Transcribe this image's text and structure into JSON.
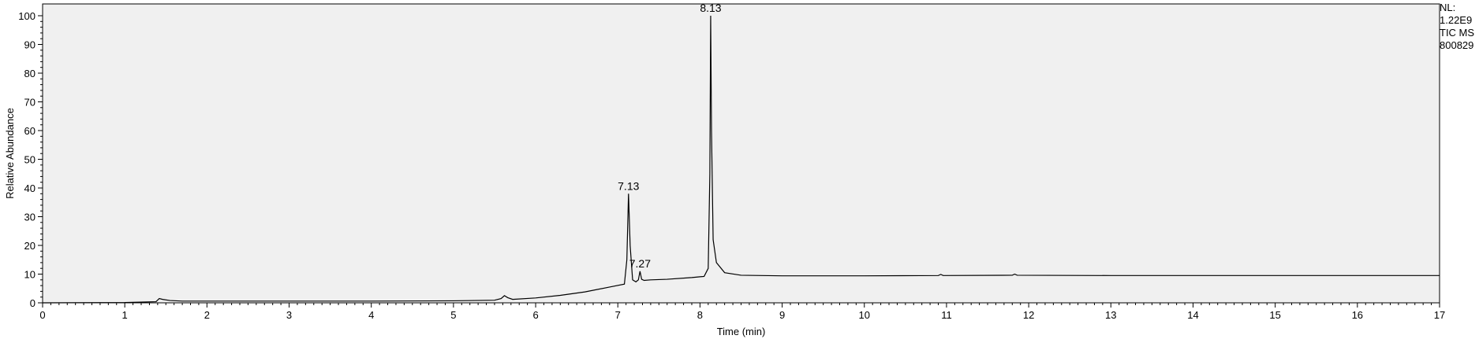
{
  "info": {
    "nl_label": "NL:",
    "nl_value": "1.22E9",
    "trace_label": "TIC  MS",
    "sample_id": "800829"
  },
  "chart_data": {
    "type": "line",
    "title": "",
    "xlabel": "Time (min)",
    "ylabel": "Relative Abundance",
    "xlim": [
      0,
      17
    ],
    "ylim": [
      0,
      100
    ],
    "xticks": [
      0,
      1,
      2,
      3,
      4,
      5,
      6,
      7,
      8,
      9,
      10,
      11,
      12,
      13,
      14,
      15,
      16,
      17
    ],
    "yticks": [
      0,
      10,
      20,
      30,
      40,
      50,
      60,
      70,
      80,
      90,
      100
    ],
    "grid": false,
    "series": [
      {
        "x": [
          0,
          1.0,
          1.38,
          1.42,
          1.46,
          1.55,
          1.7,
          2.0,
          3.0,
          4.0,
          5.0,
          5.5,
          5.58,
          5.62,
          5.66,
          5.72,
          6.0,
          6.3,
          6.6,
          6.9,
          7.08,
          7.11,
          7.13,
          7.15,
          7.18,
          7.22,
          7.25,
          7.27,
          7.29,
          7.32,
          7.4,
          7.6,
          7.9,
          8.05,
          8.1,
          8.12,
          8.13,
          8.14,
          8.16,
          8.2,
          8.3,
          8.5,
          9.0,
          10.0,
          10.9,
          10.93,
          10.96,
          11.8,
          11.83,
          11.86,
          13.0,
          15.0,
          17.0
        ],
        "y": [
          0,
          0.1,
          0.4,
          1.5,
          1.2,
          0.8,
          0.6,
          0.6,
          0.6,
          0.6,
          0.7,
          0.9,
          1.5,
          2.5,
          1.8,
          1.2,
          1.7,
          2.6,
          3.8,
          5.5,
          6.5,
          15,
          38,
          20,
          8,
          7.3,
          8.0,
          11,
          8.2,
          7.8,
          8.0,
          8.2,
          8.8,
          9.2,
          12,
          45,
          100,
          60,
          22,
          14,
          10.5,
          9.6,
          9.4,
          9.4,
          9.5,
          9.9,
          9.5,
          9.6,
          10.0,
          9.6,
          9.5,
          9.5,
          9.5
        ]
      }
    ],
    "annotations": [
      {
        "label": "7.13",
        "x": 7.13,
        "y": 38
      },
      {
        "label": "7.27",
        "x": 7.27,
        "y": 11
      },
      {
        "label": "8.13",
        "x": 8.13,
        "y": 100
      }
    ]
  }
}
